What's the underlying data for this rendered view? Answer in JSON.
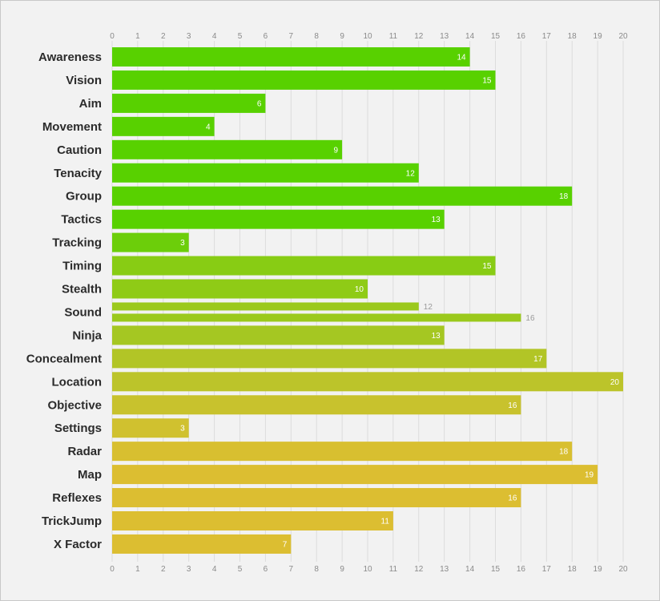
{
  "chart_data": {
    "type": "bar",
    "orientation": "horizontal",
    "xlim": [
      0,
      20
    ],
    "ticks": [
      "0",
      "1",
      "2",
      "3",
      "4",
      "5",
      "6",
      "7",
      "8",
      "9",
      "10",
      "11",
      "12",
      "13",
      "14",
      "15",
      "16",
      "17",
      "18",
      "19",
      "20"
    ],
    "grid": true,
    "tick_labels_top": true,
    "tick_labels_bottom": true,
    "categories": [
      {
        "label": "Awareness",
        "values": [
          14
        ],
        "color": "#58d100"
      },
      {
        "label": "Vision",
        "values": [
          15
        ],
        "color": "#58d100"
      },
      {
        "label": "Aim",
        "values": [
          6
        ],
        "color": "#58d100"
      },
      {
        "label": "Movement",
        "values": [
          4
        ],
        "color": "#58d100"
      },
      {
        "label": "Caution",
        "values": [
          9
        ],
        "color": "#58d100"
      },
      {
        "label": "Tenacity",
        "values": [
          12
        ],
        "color": "#58d100"
      },
      {
        "label": "Group",
        "values": [
          18
        ],
        "color": "#58d100"
      },
      {
        "label": "Tactics",
        "values": [
          13
        ],
        "color": "#58d100"
      },
      {
        "label": "Tracking",
        "values": [
          3
        ],
        "color": "#6cce0a"
      },
      {
        "label": "Timing",
        "values": [
          15
        ],
        "color": "#88cc14"
      },
      {
        "label": "Stealth",
        "values": [
          10
        ],
        "color": "#8fcb16"
      },
      {
        "label": "Sound",
        "values": [
          12,
          16
        ],
        "color": "#9bc91c"
      },
      {
        "label": "Ninja",
        "values": [
          13
        ],
        "color": "#a5c722"
      },
      {
        "label": "Concealment",
        "values": [
          17
        ],
        "color": "#b2c526"
      },
      {
        "label": "Location",
        "values": [
          20
        ],
        "color": "#bcc42a"
      },
      {
        "label": "Objective",
        "values": [
          16
        ],
        "color": "#c8c22d"
      },
      {
        "label": "Settings",
        "values": [
          3
        ],
        "color": "#d0c12f"
      },
      {
        "label": "Radar",
        "values": [
          18
        ],
        "color": "#d8bf30"
      },
      {
        "label": "Map",
        "values": [
          19
        ],
        "color": "#dcbe31"
      },
      {
        "label": "Reflexes",
        "values": [
          16
        ],
        "color": "#dcbe31"
      },
      {
        "label": "TrickJump",
        "values": [
          11
        ],
        "color": "#dcbe31"
      },
      {
        "label": "X Factor",
        "values": [
          7
        ],
        "color": "#dcbe31"
      }
    ]
  }
}
